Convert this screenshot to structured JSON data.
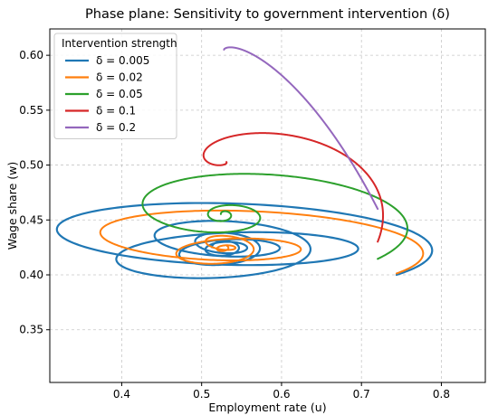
{
  "chart_data": {
    "type": "line",
    "title": "Phase plane: Sensitivity to government intervention (δ)",
    "xlabel": "Employment rate (u)",
    "ylabel": "Wage share (w)",
    "xlim": [
      0.31,
      0.855
    ],
    "ylim": [
      0.302,
      0.624
    ],
    "xticks": [
      "0.4",
      "0.5",
      "0.6",
      "0.7",
      "0.8"
    ],
    "yticks": [
      "0.35",
      "0.40",
      "0.45",
      "0.50",
      "0.55",
      "0.60"
    ],
    "grid": true,
    "legend": {
      "title": "Intervention strength",
      "placement": "top-left"
    },
    "series": [
      {
        "name": "δ = 0.005",
        "color": "#1f77b4",
        "center": [
          0.528,
          0.425
        ],
        "start": [
          0.8,
          0.4
        ],
        "turns": 6.6,
        "rx_end": 0.015,
        "ry_end": 0.005,
        "offset_y": 0.016,
        "width": 2.2
      },
      {
        "name": "δ = 0.02",
        "color": "#ff7f0e",
        "center": [
          0.528,
          0.425
        ],
        "start": [
          0.8,
          0.4
        ],
        "turns": 4.2,
        "rx_end": 0.005,
        "ry_end": 0.002,
        "offset_y": 0.012,
        "width": 2.0
      },
      {
        "name": "δ = 0.05",
        "color": "#2ca02c",
        "center": [
          0.528,
          0.455
        ],
        "start": [
          0.8,
          0.4
        ],
        "turns": 2.6,
        "rx_end": 0.004,
        "ry_end": 0.002,
        "offset_y": 0.004,
        "width": 2.0
      },
      {
        "name": "δ = 0.1",
        "color": "#d62728",
        "center": [
          0.528,
          0.503
        ],
        "start": [
          0.8,
          0.4
        ],
        "turns": 1.1,
        "rx_end": 0.003,
        "ry_end": 0.001,
        "offset_y": 0.0,
        "width": 2.0
      },
      {
        "name": "δ = 0.2",
        "color": "#9467bd",
        "center": [
          0.528,
          0.605
        ],
        "start": [
          0.8,
          0.4
        ],
        "turns": 0.4,
        "rx_end": 0.0,
        "ry_end": 0.0,
        "offset_y": 0.0,
        "width": 2.0
      }
    ]
  }
}
